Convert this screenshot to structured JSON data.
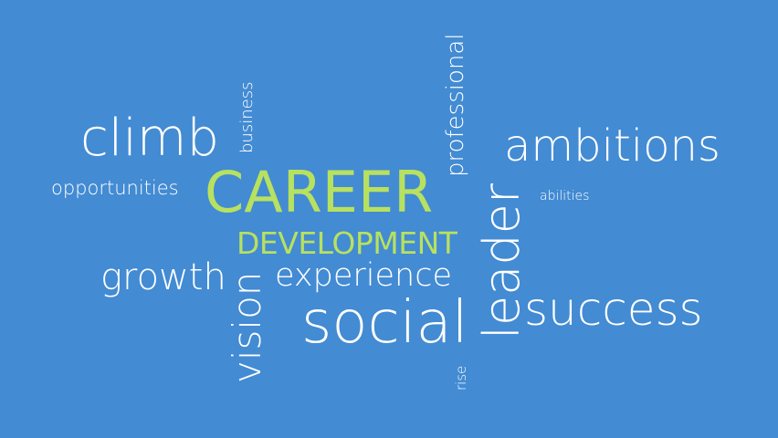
{
  "background_color": "#438bd3",
  "text_color": "#ffffff",
  "accent_color": "#b8e15f",
  "words": {
    "career": "CAREER",
    "development": "DEVELOPMENT",
    "climb": "climb",
    "business": "business",
    "professional": "professional",
    "ambitions": "ambitions",
    "opportunities": "opportunities",
    "abilities": "abilities",
    "leader": "leader",
    "growth": "growth",
    "experience": "experience",
    "success": "success",
    "vision": "vision",
    "social": "social",
    "rise": "rise"
  }
}
